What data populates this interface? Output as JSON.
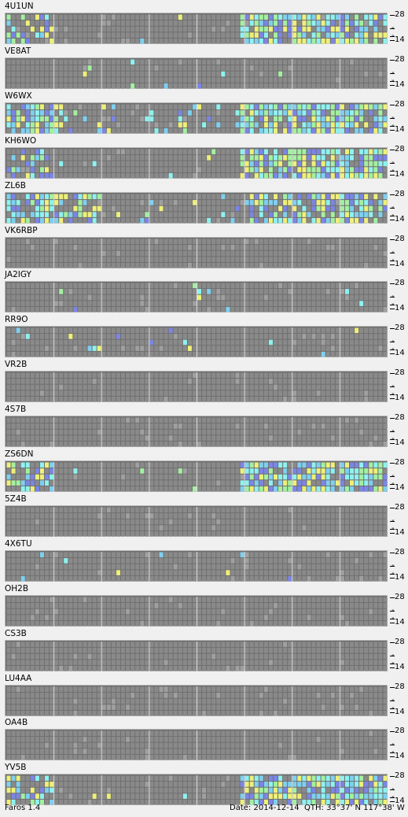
{
  "app_name": "Faros 1.4",
  "status": {
    "date_label": "Date:",
    "date": "2014-12-14",
    "qth_label": "QTH:",
    "qth": "33°37' N   117°38' W"
  },
  "scale": {
    "top": "28",
    "middle": "-",
    "bottom": "14"
  },
  "colors": {
    "none": "#8a8a8a",
    "empty": "#a0a0a0",
    "l1": "#7c86e6",
    "l2": "#7fd0f0",
    "l3": "#8ef2f0",
    "l4": "#a4f0a0",
    "l5": "#eef07a"
  },
  "beacons": [
    {
      "name": "4U1UN",
      "activity": "high-late"
    },
    {
      "name": "VE8AT",
      "activity": "sparse"
    },
    {
      "name": "W6WX",
      "activity": "high-all"
    },
    {
      "name": "KH6WO",
      "activity": "high-late"
    },
    {
      "name": "ZL6B",
      "activity": "high-split"
    },
    {
      "name": "VK6RBP",
      "activity": "none"
    },
    {
      "name": "JA2IGY",
      "activity": "sparse"
    },
    {
      "name": "RR9O",
      "activity": "sparse"
    },
    {
      "name": "VR2B",
      "activity": "none"
    },
    {
      "name": "4S7B",
      "activity": "none"
    },
    {
      "name": "ZS6DN",
      "activity": "high-late"
    },
    {
      "name": "5Z4B",
      "activity": "none"
    },
    {
      "name": "4X6TU",
      "activity": "sparse"
    },
    {
      "name": "OH2B",
      "activity": "none"
    },
    {
      "name": "CS3B",
      "activity": "none"
    },
    {
      "name": "LU4AA",
      "activity": "none"
    },
    {
      "name": "OA4B",
      "activity": "none"
    },
    {
      "name": "YV5B",
      "activity": "high-late"
    }
  ]
}
